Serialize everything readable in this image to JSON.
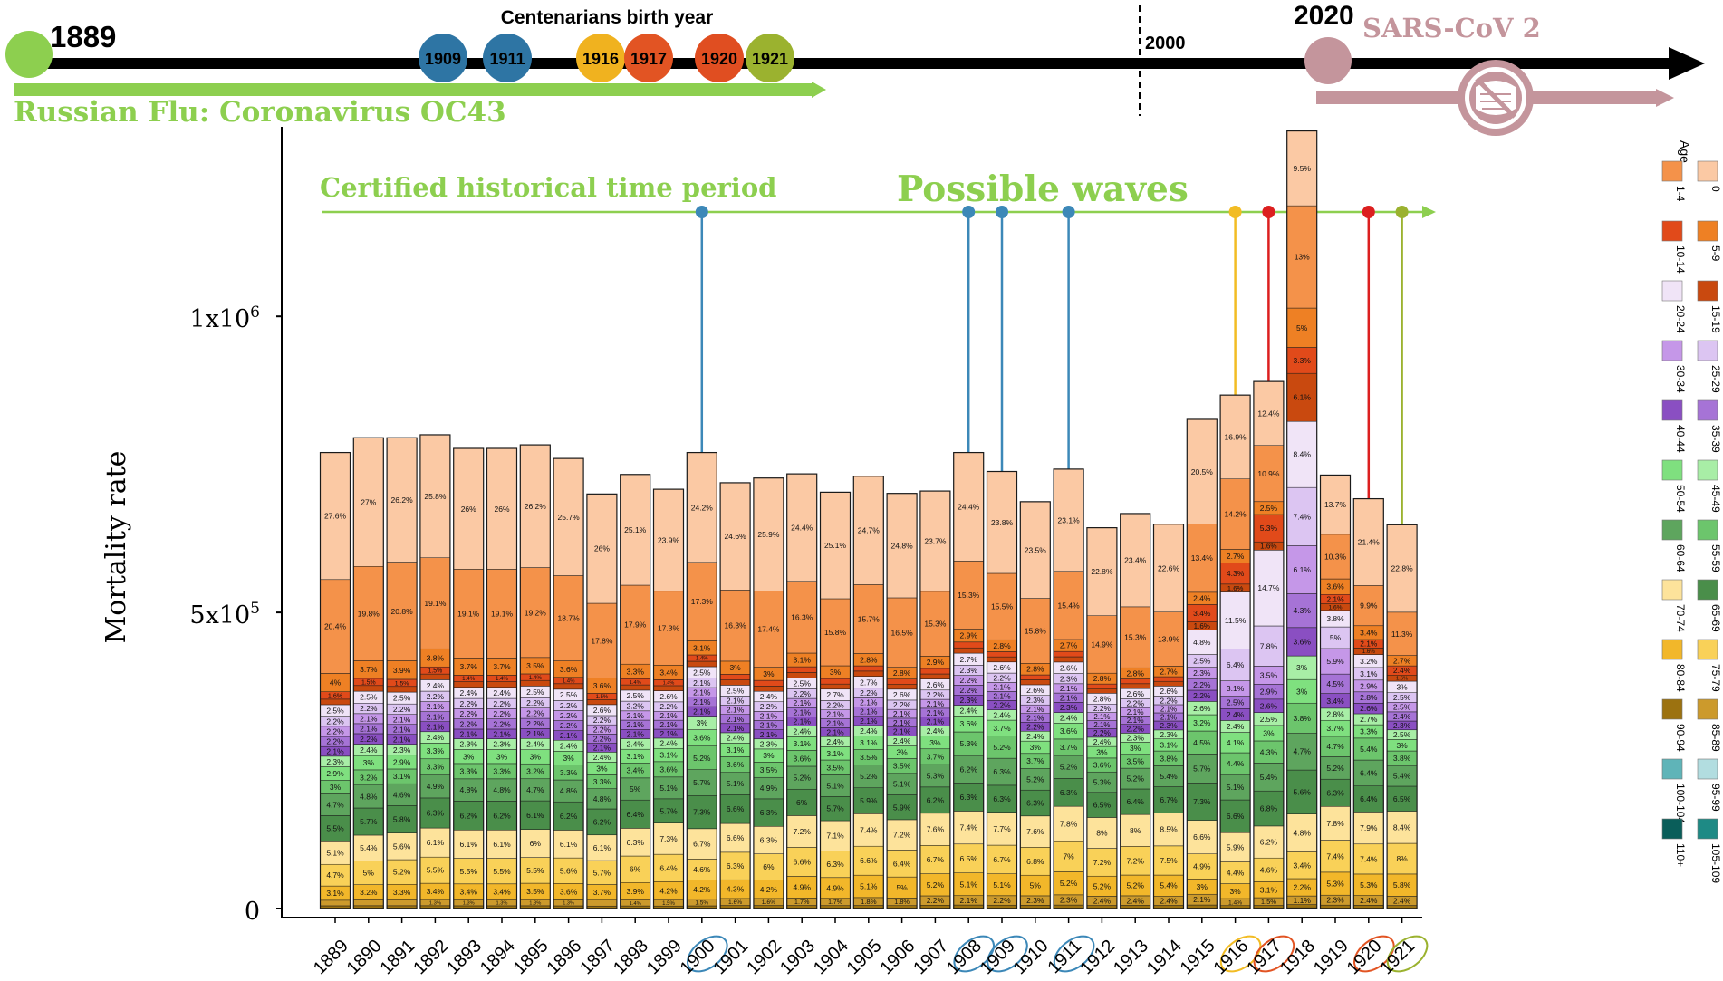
{
  "timeline": {
    "start_year": "1889",
    "end_year": "2020",
    "mid_year": "2000",
    "centenarians_title": "Centenarians birth year",
    "russian_flu_label": "Russian Flu: Coronavirus OC43",
    "sars_label": "SARS-CoV 2",
    "markers": [
      {
        "year": "1909",
        "color": "#2e75a4"
      },
      {
        "year": "1911",
        "color": "#2e75a4"
      },
      {
        "year": "1916",
        "color": "#f0b21f"
      },
      {
        "year": "1917",
        "color": "#e25423"
      },
      {
        "year": "1920",
        "color": "#e04e21"
      },
      {
        "year": "1921",
        "color": "#9bb22f"
      }
    ],
    "colors": {
      "line": "#000000",
      "green": "#8dcf4f",
      "sars": "#c4959c"
    }
  },
  "annotations": {
    "certified_label": "Certified historical time period",
    "possible_waves_label": "Possible waves",
    "wave_pins": [
      {
        "year": "1900",
        "color": "#3c88b8"
      },
      {
        "year": "1908",
        "color": "#3c88b8"
      },
      {
        "year": "1909",
        "color": "#3c88b8"
      },
      {
        "year": "1911",
        "color": "#3c88b8"
      },
      {
        "year": "1916",
        "color": "#f2bc24"
      },
      {
        "year": "1917",
        "color": "#dc1f1f"
      },
      {
        "year": "1920",
        "color": "#dc1f1f"
      },
      {
        "year": "1921",
        "color": "#9bb22f"
      }
    ]
  },
  "chart_data": {
    "type": "bar",
    "stacked": true,
    "ylabel": "Mortality rate",
    "ylim": [
      0,
      1320000
    ],
    "yticks": [
      {
        "value": 0,
        "label": "0"
      },
      {
        "value": 500000,
        "label": "5x10",
        "exp": "5"
      },
      {
        "value": 1000000,
        "label": "1x10",
        "exp": "6"
      }
    ],
    "categories": [
      "1889",
      "1890",
      "1891",
      "1892",
      "1893",
      "1894",
      "1895",
      "1896",
      "1897",
      "1898",
      "1899",
      "1900",
      "1901",
      "1902",
      "1903",
      "1904",
      "1905",
      "1906",
      "1907",
      "1908",
      "1909",
      "1910",
      "1911",
      "1912",
      "1913",
      "1914",
      "1915",
      "1916",
      "1917",
      "1918",
      "1919",
      "1920",
      "1921"
    ],
    "circled_years": [
      {
        "year": "1900",
        "color": "#3c88b8"
      },
      {
        "year": "1908",
        "color": "#3c88b8"
      },
      {
        "year": "1909",
        "color": "#3c88b8"
      },
      {
        "year": "1911",
        "color": "#3c88b8"
      },
      {
        "year": "1916",
        "color": "#f2bc24"
      },
      {
        "year": "1917",
        "color": "#e25423"
      },
      {
        "year": "1920",
        "color": "#e25423"
      },
      {
        "year": "1921",
        "color": "#9bb22f"
      }
    ],
    "totals": [
      770000,
      795000,
      795000,
      800000,
      777000,
      777000,
      783000,
      760000,
      700000,
      733000,
      708000,
      770000,
      719000,
      727000,
      734000,
      703000,
      730000,
      701000,
      705000,
      770000,
      738000,
      687000,
      742000,
      643000,
      667000,
      649000,
      826000,
      867000,
      890000,
      1313000,
      732000,
      692000,
      648000
    ],
    "age_groups": [
      {
        "name": "0",
        "color": "#fbc9a4",
        "values": [
          27.6,
          27,
          26.2,
          25.8,
          26,
          26,
          26.2,
          25.7,
          26,
          25.1,
          23.9,
          24.2,
          24.6,
          25.9,
          24.4,
          25.1,
          24.7,
          24.8,
          23.7,
          24.4,
          23.8,
          23.5,
          23.1,
          22.8,
          23.4,
          22.6,
          20.5,
          16.9,
          12.4,
          9.5,
          13.7,
          21.4,
          22.8
        ]
      },
      {
        "name": "1-4",
        "color": "#f4924a",
        "values": [
          20.4,
          19.8,
          20.8,
          19.1,
          19.1,
          19.1,
          19.2,
          18.7,
          17.8,
          17.9,
          17.3,
          17.3,
          16.3,
          17.4,
          16.3,
          15.8,
          15.7,
          16.5,
          15.3,
          15.3,
          15.5,
          15.8,
          15.4,
          14.9,
          15.3,
          13.9,
          13.4,
          14.2,
          10.9,
          13,
          10.3,
          9.9,
          11.3
        ]
      },
      {
        "name": "5-9",
        "color": "#ee8024",
        "values": [
          4,
          3.7,
          3.9,
          3.8,
          3.7,
          3.7,
          3.5,
          3.6,
          3.6,
          3.3,
          3.4,
          3.1,
          3,
          3,
          3.1,
          3,
          2.8,
          2.8,
          2.9,
          2.9,
          2.8,
          2.8,
          2.7,
          2.8,
          2.8,
          2.7,
          2.4,
          2.7,
          2.5,
          5,
          3.6,
          3.4,
          2.7
        ]
      },
      {
        "name": "10-14",
        "color": "#e14a1a",
        "values": [
          1.6,
          1.5,
          1.5,
          1.5,
          1.4,
          1.4,
          1.4,
          1.4,
          1.5,
          1.4,
          1.4,
          1.4,
          1.3,
          1.3,
          1.3,
          1.3,
          1.2,
          1.2,
          1.3,
          1.3,
          1.2,
          1.2,
          1.2,
          1.2,
          1.2,
          1.2,
          3.4,
          4.3,
          5.3,
          3.3,
          2.1,
          2.1,
          2.4
        ]
      },
      {
        "name": "15-19",
        "color": "#c9490f",
        "values": [
          1.2,
          1.2,
          1.2,
          1.2,
          1.2,
          1.2,
          1.2,
          1.2,
          1.2,
          1.2,
          1.2,
          1.2,
          1.2,
          1.2,
          1.2,
          1.2,
          1.2,
          1.2,
          1.2,
          1.2,
          1.2,
          1.2,
          1.2,
          1.2,
          1.2,
          1.2,
          1.6,
          1.6,
          1.6,
          6.1,
          1.6,
          1.6,
          1.6
        ]
      },
      {
        "name": "20-24",
        "color": "#f0e4f7",
        "values": [
          2.5,
          2.5,
          2.5,
          2.4,
          2.4,
          2.4,
          2.5,
          2.5,
          2.6,
          2.5,
          2.6,
          2.5,
          2.5,
          2.4,
          2.5,
          2.7,
          2.7,
          2.6,
          2.6,
          2.7,
          2.6,
          2.6,
          2.6,
          2.8,
          2.6,
          2.6,
          4.8,
          11.5,
          14.7,
          8.4,
          3.8,
          3.2,
          3
        ]
      },
      {
        "name": "25-29",
        "color": "#dcc5f2",
        "values": [
          2.2,
          2.2,
          2.2,
          2.2,
          2.2,
          2.2,
          2.2,
          2.2,
          2.2,
          2.2,
          2.2,
          2.1,
          2.1,
          2.2,
          2.2,
          2.2,
          2.2,
          2.2,
          2.2,
          2.3,
          2.2,
          2.3,
          2.3,
          2.2,
          2.2,
          2.2,
          2.5,
          6.4,
          7.8,
          7.4,
          5,
          3.1,
          2.5
        ]
      },
      {
        "name": "30-34",
        "color": "#c597e8",
        "values": [
          2.2,
          2.1,
          2.1,
          2.1,
          2.2,
          2.2,
          2.2,
          2.2,
          2.2,
          2.1,
          2.1,
          2.1,
          2.1,
          2.1,
          2.1,
          2.1,
          2.1,
          2.1,
          2.1,
          2.2,
          2.1,
          2.1,
          2.1,
          2.1,
          2.1,
          2.1,
          2.3,
          3.1,
          3.5,
          6.1,
          5.9,
          2.9,
          2.5
        ]
      },
      {
        "name": "35-39",
        "color": "#a673d6",
        "values": [
          2.2,
          2.1,
          2.1,
          2.1,
          2.2,
          2.2,
          2.2,
          2.2,
          2.2,
          2.1,
          2.1,
          2.1,
          2.1,
          2.1,
          2.1,
          2.1,
          2.1,
          2.1,
          2.1,
          2.2,
          2.1,
          2.1,
          2.1,
          2.1,
          2.1,
          2.1,
          2.2,
          2.5,
          2.9,
          4.3,
          4.5,
          2.8,
          2.4
        ]
      },
      {
        "name": "40-44",
        "color": "#8a4fc2",
        "values": [
          2.1,
          2.2,
          2.1,
          2.1,
          2.1,
          2.1,
          2.1,
          2.1,
          2.1,
          2.1,
          2.1,
          2.1,
          2.1,
          2.1,
          2.1,
          2.1,
          2.1,
          2.1,
          2.1,
          2.3,
          2.2,
          2.2,
          2.3,
          2.2,
          2.2,
          2.3,
          2.2,
          2.4,
          2.6,
          3.6,
          3.4,
          2.6,
          2.3
        ]
      },
      {
        "name": "45-49",
        "color": "#a8eea6",
        "values": [
          2.3,
          2.4,
          2.3,
          2.4,
          2.3,
          2.3,
          2.4,
          2.4,
          2.4,
          2.4,
          2.4,
          3,
          2.4,
          2.3,
          2.4,
          2.4,
          2.4,
          2.4,
          2.4,
          2.4,
          2.4,
          2.4,
          2.4,
          2.4,
          2.3,
          2.3,
          2.6,
          2.4,
          2.5,
          3,
          2.8,
          2.7,
          2.5
        ]
      },
      {
        "name": "50-54",
        "color": "#7fe07f",
        "values": [
          2.9,
          3,
          2.9,
          3.3,
          3,
          3,
          3,
          3,
          3,
          3.1,
          3.1,
          3.6,
          3.1,
          3,
          3.1,
          3.1,
          3.1,
          3,
          3,
          3.6,
          3.7,
          3,
          3.6,
          3,
          3,
          3.1,
          3.2,
          4.1,
          3,
          3,
          3.7,
          3.3,
          3
        ]
      },
      {
        "name": "55-59",
        "color": "#6cc56c",
        "values": [
          3,
          3.2,
          3.1,
          3.3,
          3.3,
          3.3,
          3.2,
          3.3,
          3.3,
          3.4,
          3.6,
          5.2,
          3.6,
          3.5,
          3.6,
          3.5,
          3.5,
          3.5,
          3.7,
          5.3,
          5.2,
          3.7,
          3.7,
          3.6,
          3.5,
          3.8,
          4.5,
          4.4,
          4.3,
          3.8,
          4.7,
          5.4,
          3.8
        ]
      },
      {
        "name": "60-64",
        "color": "#5ea55e",
        "values": [
          4.7,
          4.8,
          4.6,
          4.9,
          4.8,
          4.8,
          4.7,
          4.8,
          4.8,
          5,
          5.1,
          5.7,
          5.1,
          4.9,
          5.2,
          5.1,
          5.2,
          5.1,
          5.3,
          6.2,
          6.3,
          5.2,
          5.2,
          5.3,
          5.2,
          5.4,
          5.7,
          5.1,
          5.4,
          4.7,
          5.2,
          6.4,
          5.4
        ]
      },
      {
        "name": "65-69",
        "color": "#4a8e4a",
        "values": [
          5.5,
          5.7,
          5.8,
          6.3,
          6.2,
          6.2,
          6.1,
          6.2,
          6.2,
          6.4,
          5.7,
          7.3,
          6.6,
          6.3,
          6,
          5.7,
          5.9,
          5.9,
          6.2,
          6.3,
          6.3,
          6.3,
          6.3,
          6.5,
          6.4,
          6.7,
          7.3,
          6.6,
          6.8,
          5.6,
          6.3,
          6.4,
          6.5
        ]
      },
      {
        "name": "70-74",
        "color": "#fde39b",
        "values": [
          5.1,
          5.4,
          5.6,
          6.1,
          6.1,
          6.1,
          6,
          6.1,
          6.1,
          6.3,
          7.3,
          6.7,
          6.6,
          6.3,
          7.2,
          7.1,
          7.4,
          7.2,
          7.6,
          7.4,
          7.7,
          7.6,
          7.8,
          8,
          8,
          8.5,
          6.6,
          5.9,
          6.2,
          4.8,
          7.8,
          7.9,
          8.4
        ]
      },
      {
        "name": "75-79",
        "color": "#f9d158",
        "values": [
          4.7,
          5,
          5.2,
          5.5,
          5.5,
          5.5,
          5.5,
          5.6,
          5.7,
          6,
          6.4,
          4.6,
          6.3,
          6,
          6.6,
          6.3,
          6.6,
          6.4,
          6.7,
          6.5,
          6.7,
          6.8,
          7,
          7.2,
          7.2,
          7.5,
          4.9,
          4.4,
          4.6,
          3.4,
          7.4,
          7.4,
          8
        ]
      },
      {
        "name": "80-84",
        "color": "#f2b72a",
        "values": [
          3.1,
          3.2,
          3.3,
          3.4,
          3.4,
          3.4,
          3.5,
          3.6,
          3.7,
          3.9,
          4.2,
          4.2,
          4.3,
          4.2,
          4.9,
          4.9,
          5.1,
          5,
          5.2,
          5.1,
          5.1,
          5,
          5.2,
          5.2,
          5.2,
          5.4,
          3,
          3,
          3.1,
          2.2,
          5.3,
          5.3,
          5.8
        ]
      },
      {
        "name": "85-89",
        "color": "#cc9a2c",
        "values": [
          1.2,
          1.2,
          1.2,
          1.3,
          1.3,
          1.3,
          1.3,
          1.3,
          1.4,
          1.4,
          1.5,
          1.5,
          1.6,
          1.6,
          1.7,
          1.7,
          1.8,
          1.8,
          2.2,
          2.1,
          2.2,
          2.3,
          2.3,
          2.4,
          2.4,
          2.4,
          2.1,
          1.4,
          1.5,
          1.1,
          2.3,
          2.4,
          2.4
        ]
      },
      {
        "name": "90-94",
        "color": "#9c7210",
        "values": [
          0.5,
          0.5,
          0.5,
          0.5,
          0.5,
          0.5,
          0.5,
          0.5,
          0.5,
          0.5,
          0.5,
          0.5,
          0.6,
          0.6,
          0.6,
          0.6,
          0.6,
          0.6,
          0.7,
          0.7,
          0.7,
          0.7,
          0.7,
          0.7,
          0.7,
          0.7,
          0.6,
          0.5,
          0.5,
          0.4,
          0.7,
          0.7,
          0.7
        ]
      },
      {
        "name": "95-99",
        "color": "#b2dde0",
        "values": [
          0.1,
          0.1,
          0.1,
          0.1,
          0.1,
          0.1,
          0.1,
          0.1,
          0.1,
          0.1,
          0.1,
          0.1,
          0.1,
          0.1,
          0.1,
          0.1,
          0.1,
          0.1,
          0.1,
          0.1,
          0.1,
          0.1,
          0.1,
          0.1,
          0.1,
          0.1,
          0.1,
          0.1,
          0.1,
          0.1,
          0.1,
          0.1,
          0.1
        ]
      },
      {
        "name": "100-104",
        "color": "#5fb4b8",
        "values": [
          0,
          0,
          0,
          0,
          0,
          0,
          0,
          0,
          0,
          0,
          0,
          0,
          0,
          0,
          0,
          0,
          0,
          0,
          0,
          0,
          0,
          0,
          0,
          0,
          0,
          0,
          0,
          0,
          0,
          0,
          0,
          0,
          0
        ]
      },
      {
        "name": "105-109",
        "color": "#1e8a85",
        "values": [
          0,
          0,
          0,
          0,
          0,
          0,
          0,
          0,
          0,
          0,
          0,
          0,
          0,
          0,
          0,
          0,
          0,
          0,
          0,
          0,
          0,
          0,
          0,
          0,
          0,
          0,
          0,
          0,
          0,
          0,
          0,
          0,
          0
        ]
      },
      {
        "name": "110+",
        "color": "#0a5e5a",
        "values": [
          0,
          0,
          0,
          0,
          0,
          0,
          0,
          0,
          0,
          0,
          0,
          0,
          0,
          0,
          0,
          0,
          0,
          0,
          0,
          0,
          0,
          0,
          0,
          0,
          0,
          0,
          0,
          0,
          0,
          0,
          0,
          0,
          0
        ]
      }
    ],
    "legend": {
      "title": "Age",
      "placement": "right",
      "entries": [
        "0",
        "1-4",
        "5-9",
        "10-14",
        "15-19",
        "20-24",
        "25-29",
        "30-34",
        "35-39",
        "40-44",
        "45-49",
        "50-54",
        "55-59",
        "60-64",
        "65-69",
        "70-74",
        "75-79",
        "80-84",
        "85-89",
        "90-94",
        "95-99",
        "100-104",
        "105-109",
        "110+"
      ]
    }
  }
}
